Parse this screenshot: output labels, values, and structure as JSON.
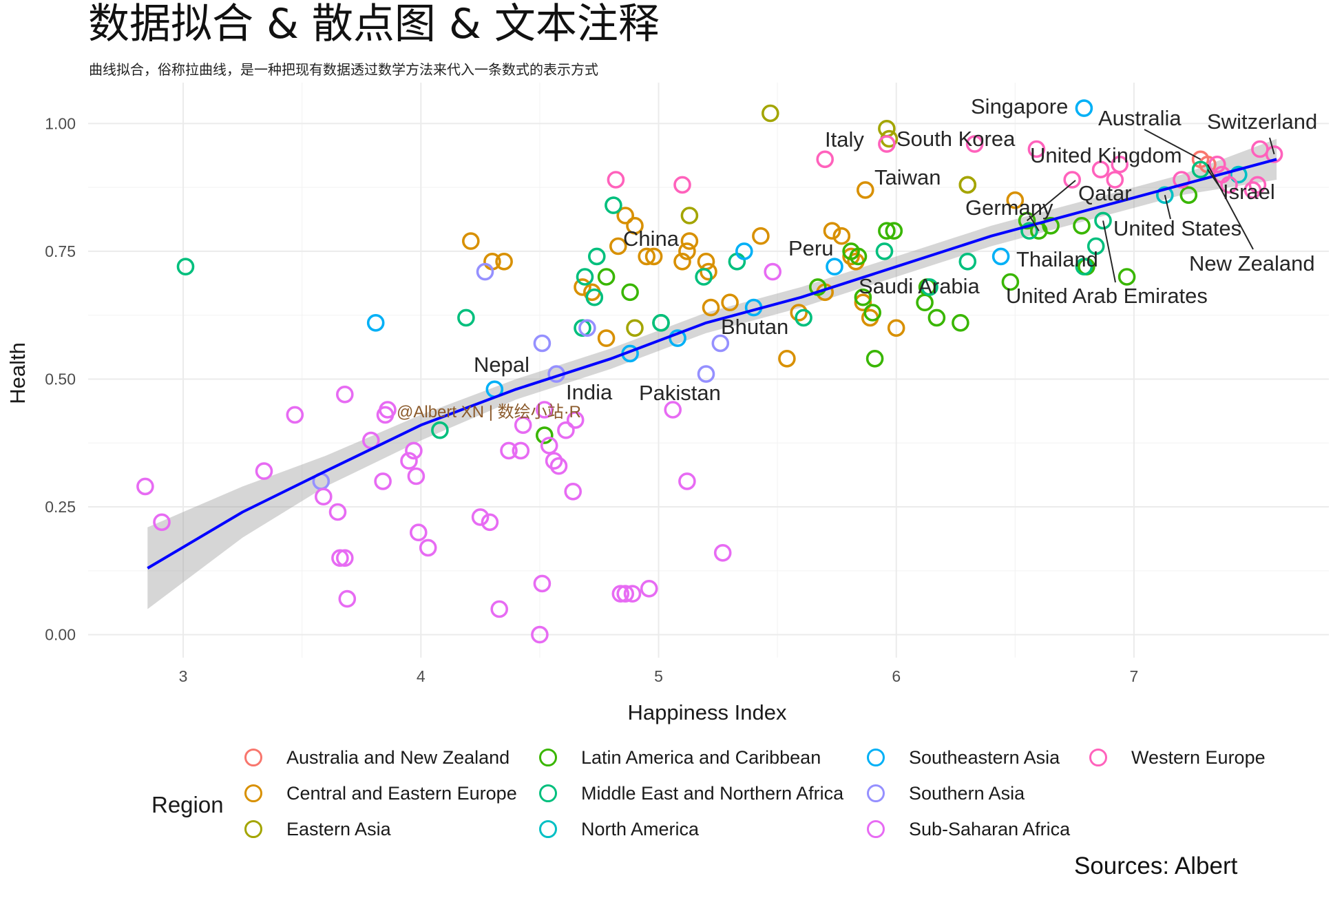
{
  "title": "数据拟合 & 散点图 & 文本注释",
  "subtitle": "曲线拟合，俗称拉曲线，是一种把现有数据透过数学方法来代入一条数式的表示方式",
  "caption": "Sources: Albert",
  "watermark": "@Albert XN | 数绘小站·R",
  "legend": {
    "title": "Region",
    "items": [
      {
        "label": "Australia and New Zealand",
        "color": "#F8766D"
      },
      {
        "label": "Central and Eastern Europe",
        "color": "#D89000"
      },
      {
        "label": "Eastern Asia",
        "color": "#A3A500"
      },
      {
        "label": "Latin America and Caribbean",
        "color": "#39B600"
      },
      {
        "label": "Middle East and Northern Africa",
        "color": "#00BF7D"
      },
      {
        "label": "North America",
        "color": "#00BFC4"
      },
      {
        "label": "Southeastern Asia",
        "color": "#00B0F6"
      },
      {
        "label": "Southern Asia",
        "color": "#9590FF"
      },
      {
        "label": "Sub-Saharan Africa",
        "color": "#E76BF3"
      },
      {
        "label": "Western Europe",
        "color": "#FF62BC"
      }
    ]
  },
  "chart_data": {
    "type": "scatter",
    "title": "数据拟合 & 散点图 & 文本注释",
    "xlabel": "Happiness Index",
    "ylabel": "Health",
    "xlim": [
      2.6,
      7.82
    ],
    "ylim": [
      -0.045,
      1.08
    ],
    "xticks": [
      3,
      4,
      5,
      6,
      7
    ],
    "yticks": [
      0.0,
      0.25,
      0.5,
      0.75,
      1.0
    ],
    "ytick_labels": [
      "0.00",
      "0.25",
      "0.50",
      "0.75",
      "1.00"
    ],
    "grid": true,
    "legend_position": "bottom",
    "fit": {
      "method": "loess",
      "color": "#0000FF",
      "x": [
        2.85,
        3.25,
        3.6,
        4.0,
        4.4,
        4.8,
        5.2,
        5.6,
        6.0,
        6.4,
        6.8,
        7.2,
        7.6
      ],
      "y": [
        0.13,
        0.24,
        0.32,
        0.41,
        0.48,
        0.54,
        0.61,
        0.66,
        0.72,
        0.78,
        0.83,
        0.88,
        0.93
      ],
      "lower": [
        0.05,
        0.19,
        0.29,
        0.38,
        0.46,
        0.52,
        0.59,
        0.64,
        0.7,
        0.76,
        0.81,
        0.86,
        0.89
      ],
      "upper": [
        0.21,
        0.29,
        0.35,
        0.43,
        0.5,
        0.56,
        0.63,
        0.68,
        0.74,
        0.8,
        0.85,
        0.9,
        0.97
      ]
    },
    "series": [
      {
        "name": "Australia and New Zealand",
        "color": "#F8766D",
        "x": [
          7.28,
          7.31
        ],
        "y": [
          0.93,
          0.92
        ]
      },
      {
        "name": "Central and Eastern Europe",
        "color": "#D89000",
        "x": [
          4.21,
          4.3,
          4.35,
          4.68,
          4.72,
          4.78,
          4.83,
          4.86,
          4.9,
          4.95,
          4.98,
          5.1,
          5.12,
          5.13,
          5.2,
          5.21,
          5.22,
          5.3,
          5.43,
          5.54,
          5.59,
          5.7,
          5.73,
          5.77,
          5.81,
          5.83,
          5.86,
          5.87,
          5.89,
          6.0,
          6.3,
          6.5
        ],
        "y": [
          0.77,
          0.73,
          0.73,
          0.68,
          0.67,
          0.58,
          0.76,
          0.82,
          0.8,
          0.74,
          0.74,
          0.73,
          0.75,
          0.77,
          0.73,
          0.71,
          0.64,
          0.65,
          0.78,
          0.54,
          0.63,
          0.67,
          0.79,
          0.78,
          0.74,
          0.73,
          0.65,
          0.87,
          0.62,
          0.6,
          0.88,
          0.85
        ]
      },
      {
        "name": "Eastern Asia",
        "color": "#A3A500",
        "x": [
          4.9,
          5.13,
          5.47,
          5.96,
          5.97,
          6.3
        ],
        "y": [
          0.6,
          0.82,
          1.02,
          0.99,
          0.97,
          0.88
        ]
      },
      {
        "name": "Latin America and Caribbean",
        "color": "#39B600",
        "x": [
          4.52,
          4.78,
          4.88,
          5.01,
          5.67,
          5.81,
          5.84,
          5.86,
          5.9,
          5.91,
          5.96,
          5.99,
          6.12,
          6.13,
          6.17,
          6.27,
          6.48,
          6.55,
          6.6,
          6.65,
          6.78,
          6.8,
          6.97,
          7.23
        ],
        "y": [
          0.39,
          0.7,
          0.67,
          0.61,
          0.68,
          0.75,
          0.74,
          0.66,
          0.63,
          0.54,
          0.79,
          0.79,
          0.65,
          0.68,
          0.62,
          0.61,
          0.69,
          0.81,
          0.79,
          0.8,
          0.8,
          0.72,
          0.7,
          0.86
        ]
      },
      {
        "name": "Middle East and Northern Africa",
        "color": "#00BF7D",
        "x": [
          3.01,
          4.08,
          4.19,
          4.68,
          4.69,
          4.73,
          4.74,
          4.81,
          5.01,
          5.19,
          5.33,
          5.61,
          5.95,
          6.14,
          6.3,
          6.56,
          6.79,
          6.84,
          6.87,
          7.28
        ],
        "y": [
          0.72,
          0.4,
          0.62,
          0.6,
          0.7,
          0.66,
          0.74,
          0.84,
          0.61,
          0.7,
          0.73,
          0.62,
          0.75,
          0.68,
          0.73,
          0.79,
          0.72,
          0.76,
          0.81,
          0.91
        ]
      },
      {
        "name": "North America",
        "color": "#00BFC4",
        "x": [
          7.13,
          7.44
        ],
        "y": [
          0.86,
          0.9
        ]
      },
      {
        "name": "Southeastern Asia",
        "color": "#00B0F6",
        "x": [
          3.81,
          4.31,
          4.88,
          5.08,
          5.36,
          5.4,
          5.74,
          6.44,
          6.79
        ],
        "y": [
          0.61,
          0.48,
          0.55,
          0.58,
          0.75,
          0.64,
          0.72,
          0.74,
          1.03
        ]
      },
      {
        "name": "Southern Asia",
        "color": "#9590FF",
        "x": [
          3.58,
          4.27,
          4.51,
          4.57,
          4.7,
          5.2,
          5.26
        ],
        "y": [
          0.3,
          0.71,
          0.57,
          0.51,
          0.6,
          0.51,
          0.57
        ]
      },
      {
        "name": "Sub-Saharan Africa",
        "color": "#E76BF3",
        "x": [
          2.84,
          2.91,
          3.34,
          3.47,
          3.59,
          3.65,
          3.66,
          3.68,
          3.68,
          3.69,
          3.79,
          3.84,
          3.85,
          3.86,
          3.95,
          3.97,
          3.98,
          3.99,
          4.03,
          4.25,
          4.29,
          4.33,
          4.37,
          4.42,
          4.43,
          4.5,
          4.51,
          4.52,
          4.54,
          4.56,
          4.58,
          4.61,
          4.64,
          4.65,
          4.84,
          4.86,
          4.89,
          4.96,
          5.06,
          5.12,
          5.27,
          5.48
        ],
        "y": [
          0.29,
          0.22,
          0.32,
          0.43,
          0.27,
          0.24,
          0.15,
          0.15,
          0.47,
          0.07,
          0.38,
          0.3,
          0.43,
          0.44,
          0.34,
          0.36,
          0.31,
          0.2,
          0.17,
          0.23,
          0.22,
          0.05,
          0.36,
          0.36,
          0.41,
          0.0,
          0.1,
          0.44,
          0.37,
          0.34,
          0.33,
          0.4,
          0.28,
          0.42,
          0.08,
          0.08,
          0.08,
          0.09,
          0.44,
          0.3,
          0.16,
          0.71
        ]
      },
      {
        "name": "Western Europe",
        "color": "#FF62BC",
        "x": [
          4.82,
          5.1,
          5.7,
          5.96,
          6.33,
          6.59,
          6.74,
          6.86,
          6.92,
          6.94,
          7.2,
          7.35,
          7.37,
          7.4,
          7.5,
          7.52,
          7.53,
          7.59
        ],
        "y": [
          0.89,
          0.88,
          0.93,
          0.96,
          0.96,
          0.95,
          0.89,
          0.91,
          0.89,
          0.92,
          0.89,
          0.92,
          0.9,
          0.88,
          0.87,
          0.88,
          0.95,
          0.94
        ]
      }
    ],
    "annotations": [
      {
        "label": "Singapore",
        "x": 6.79,
        "y": 1.03
      },
      {
        "label": "Australia",
        "x": 7.28,
        "y": 0.93
      },
      {
        "label": "Switzerland",
        "x": 7.59,
        "y": 0.94
      },
      {
        "label": "Italy",
        "x": 5.96,
        "y": 0.96
      },
      {
        "label": "South Korea",
        "x": 5.97,
        "y": 0.97
      },
      {
        "label": "United Kingdom",
        "x": 6.92,
        "y": 0.89
      },
      {
        "label": "Taiwan",
        "x": 6.3,
        "y": 0.88
      },
      {
        "label": "Israel",
        "x": 7.31,
        "y": 0.91
      },
      {
        "label": "Germany",
        "x": 6.6,
        "y": 0.79
      },
      {
        "label": "Qatar",
        "x": 6.55,
        "y": 0.81
      },
      {
        "label": "United States",
        "x": 7.13,
        "y": 0.86
      },
      {
        "label": "China",
        "x": 5.13,
        "y": 0.82
      },
      {
        "label": "Peru",
        "x": 5.74,
        "y": 0.72
      },
      {
        "label": "Thailand",
        "x": 6.44,
        "y": 0.74
      },
      {
        "label": "New Zealand",
        "x": 7.31,
        "y": 0.92
      },
      {
        "label": "Saudi Arabia",
        "x": 6.14,
        "y": 0.68
      },
      {
        "label": "United Arab Emirates",
        "x": 6.87,
        "y": 0.81
      },
      {
        "label": "Bhutan",
        "x": 5.2,
        "y": 0.57
      },
      {
        "label": "Nepal",
        "x": 4.31,
        "y": 0.48
      },
      {
        "label": "India",
        "x": 4.57,
        "y": 0.51
      },
      {
        "label": "Pakistan",
        "x": 5.26,
        "y": 0.57
      }
    ]
  }
}
